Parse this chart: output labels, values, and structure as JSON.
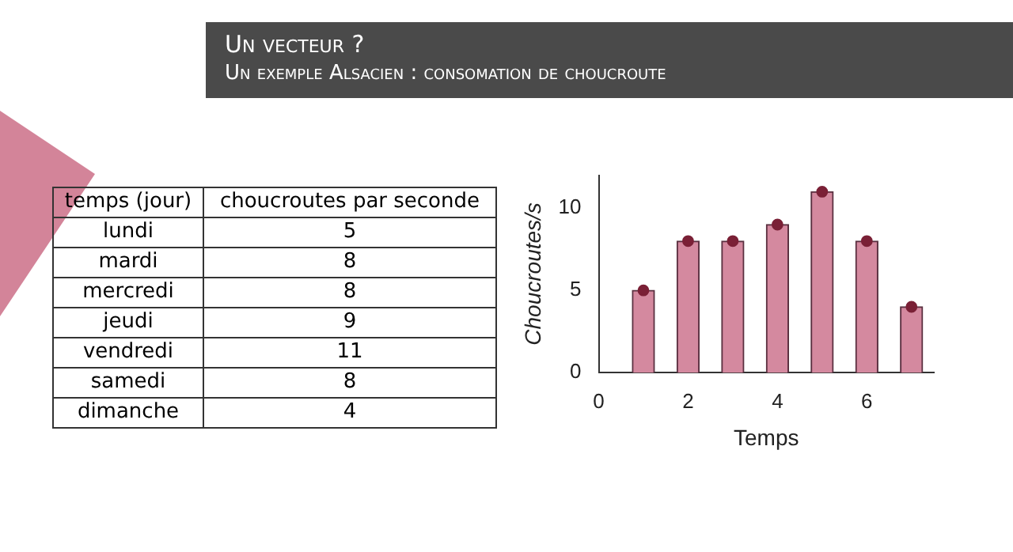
{
  "chart_data": [
    {
      "type": "other",
      "title": "Un vecteur ?",
      "subtitle": "Un exemple Alsacien : consomation de choucroute",
      "xlabel": "temps (jour)",
      "ylabel": "choucroutes par seconde",
      "categories": [
        "lundi",
        "mardi",
        "mercredi",
        "jeudi",
        "vendredi",
        "samedi",
        "dimanche"
      ],
      "values": [
        5,
        8,
        8,
        9,
        11,
        8,
        4
      ],
      "data_labels": true
    },
    {
      "type": "bar",
      "xlabel": "Temps",
      "ylabel": "Choucroutes/s",
      "x": [
        1,
        2,
        3,
        4,
        5,
        6,
        7
      ],
      "series": [
        {
          "type": "bar",
          "color": "#d4899f",
          "values": [
            5,
            8,
            8,
            9,
            11,
            8,
            4
          ]
        },
        {
          "type": "scatter",
          "color": "#7a2036",
          "marker": "circle",
          "values": [
            5,
            8,
            8,
            9,
            11,
            8,
            4
          ]
        }
      ],
      "xlim": [
        0,
        7.5
      ],
      "xticks": [
        0,
        2,
        4,
        6
      ],
      "ylim": [
        0,
        12
      ],
      "yticks": [
        0,
        5,
        10
      ],
      "legend": false
    }
  ]
}
